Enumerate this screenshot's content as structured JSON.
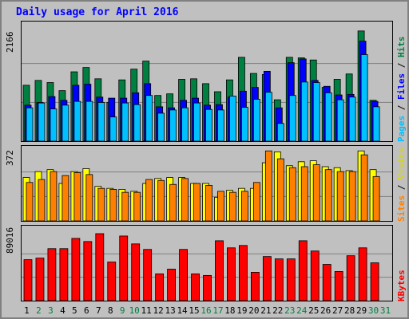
{
  "title": "Daily usage for April 2016",
  "y_max_labels": {
    "hits": "2166",
    "sites": "372",
    "kbytes": "89016"
  },
  "right_labels": {
    "pages": "Pages",
    "files": "Files",
    "hits": "Hits",
    "sites": "Sites",
    "visits": "Visits",
    "kbytes": "KBytes",
    "sep": " / "
  },
  "colors": {
    "hits": "#008040",
    "files": "#0000ff",
    "pages": "#00c0ff",
    "visits": "#ffff00",
    "sites": "#ff8000",
    "kbytes": "#ff0000",
    "weekday": "#000000",
    "weekend": "#008040"
  },
  "chart_data": [
    {
      "type": "bar",
      "title": "Daily usage for April 2016",
      "categories": [
        "1",
        "2",
        "3",
        "4",
        "5",
        "6",
        "7",
        "8",
        "9",
        "10",
        "11",
        "12",
        "13",
        "14",
        "15",
        "16",
        "17",
        "18",
        "19",
        "20",
        "21",
        "22",
        "23",
        "24",
        "25",
        "26",
        "27",
        "28",
        "29",
        "30",
        "31"
      ],
      "weekend_days": [
        "2",
        "3",
        "9",
        "10",
        "16",
        "17",
        "23",
        "24",
        "30",
        "31"
      ],
      "ylim": [
        0,
        2166
      ],
      "series": [
        {
          "name": "Hits",
          "values": [
            1040,
            1130,
            1090,
            940,
            1290,
            1370,
            1160,
            720,
            1140,
            1340,
            1490,
            850,
            880,
            1150,
            1160,
            1070,
            920,
            1140,
            1560,
            1260,
            1240,
            770,
            1560,
            1550,
            1510,
            1000,
            1150,
            1250,
            2050,
            760,
            0
          ]
        },
        {
          "name": "Files",
          "values": [
            670,
            720,
            830,
            760,
            1040,
            1060,
            820,
            800,
            800,
            900,
            1070,
            640,
            620,
            760,
            800,
            670,
            680,
            820,
            930,
            1000,
            1300,
            620,
            1460,
            1530,
            1130,
            1020,
            860,
            870,
            1860,
            740,
            0
          ]
        },
        {
          "name": "Pages",
          "values": [
            620,
            710,
            600,
            670,
            740,
            740,
            720,
            450,
            710,
            680,
            850,
            520,
            580,
            620,
            710,
            590,
            580,
            840,
            630,
            780,
            910,
            330,
            850,
            1100,
            1090,
            900,
            770,
            820,
            1610,
            640,
            0
          ]
        }
      ]
    },
    {
      "type": "bar",
      "categories": [
        "1",
        "2",
        "3",
        "4",
        "5",
        "6",
        "7",
        "8",
        "9",
        "10",
        "11",
        "12",
        "13",
        "14",
        "15",
        "16",
        "17",
        "18",
        "19",
        "20",
        "21",
        "22",
        "23",
        "24",
        "25",
        "26",
        "27",
        "28",
        "29",
        "30",
        "31"
      ],
      "ylim": [
        0,
        372
      ],
      "series": [
        {
          "name": "Visits",
          "values": [
            220,
            250,
            260,
            190,
            250,
            265,
            175,
            165,
            160,
            150,
            190,
            215,
            220,
            220,
            190,
            190,
            120,
            155,
            165,
            165,
            295,
            350,
            280,
            300,
            305,
            275,
            270,
            255,
            355,
            260,
            0
          ]
        },
        {
          "name": "Sites",
          "values": [
            195,
            210,
            250,
            230,
            245,
            235,
            165,
            160,
            145,
            145,
            210,
            205,
            185,
            215,
            190,
            180,
            150,
            145,
            150,
            195,
            355,
            315,
            270,
            275,
            285,
            260,
            250,
            250,
            335,
            225,
            0
          ]
        }
      ]
    },
    {
      "type": "bar",
      "categories": [
        "1",
        "2",
        "3",
        "4",
        "5",
        "6",
        "7",
        "8",
        "9",
        "10",
        "11",
        "12",
        "13",
        "14",
        "15",
        "16",
        "17",
        "18",
        "19",
        "20",
        "21",
        "22",
        "23",
        "24",
        "25",
        "26",
        "27",
        "28",
        "29",
        "30",
        "31"
      ],
      "ylim": [
        0,
        89016
      ],
      "series": [
        {
          "name": "KBytes",
          "values": [
            52000,
            54000,
            66000,
            66000,
            79000,
            75000,
            85000,
            49000,
            82000,
            72000,
            65000,
            34000,
            40000,
            65000,
            34000,
            32000,
            76000,
            67000,
            70000,
            36000,
            56000,
            53000,
            53000,
            76000,
            63000,
            46000,
            37000,
            57000,
            67000,
            48000,
            0
          ]
        }
      ]
    }
  ]
}
